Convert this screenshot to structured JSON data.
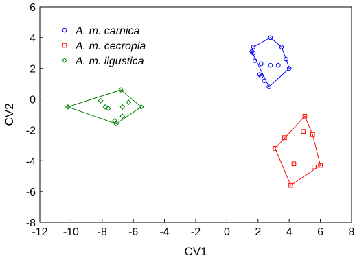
{
  "chart_data": {
    "type": "scatter",
    "title": "",
    "xlabel": "CV1",
    "ylabel": "CV2",
    "xlim": [
      -12,
      8
    ],
    "ylim": [
      -8,
      6
    ],
    "xticks": [
      -12,
      -10,
      -8,
      -6,
      -4,
      -2,
      0,
      2,
      4,
      6,
      8
    ],
    "yticks": [
      -8,
      -6,
      -4,
      -2,
      0,
      2,
      4,
      6
    ],
    "xtick_labels": [
      "-12",
      "-10",
      "-8",
      "-6",
      "-4",
      "-2",
      "0",
      "2",
      "4",
      "6",
      "8"
    ],
    "ytick_labels": [
      "-8",
      "-6",
      "-4",
      "-2",
      "0",
      "2",
      "4",
      "6"
    ],
    "grid": false,
    "legend_position": "top-left",
    "hulls": true,
    "series": [
      {
        "name": "A. m. carnica",
        "color": "#0000ff",
        "marker": "circle",
        "points": [
          [
            2.8,
            4.0
          ],
          [
            1.7,
            3.4
          ],
          [
            1.6,
            3.1
          ],
          [
            1.7,
            3.0
          ],
          [
            3.5,
            3.4
          ],
          [
            1.8,
            2.5
          ],
          [
            2.2,
            2.3
          ],
          [
            3.8,
            2.6
          ],
          [
            3.3,
            2.2
          ],
          [
            2.8,
            2.2
          ],
          [
            4.0,
            2.0
          ],
          [
            2.1,
            1.6
          ],
          [
            2.2,
            1.5
          ],
          [
            2.4,
            1.2
          ],
          [
            2.7,
            0.8
          ]
        ],
        "hull": [
          [
            1.7,
            3.4
          ],
          [
            2.8,
            4.0
          ],
          [
            3.5,
            3.4
          ],
          [
            3.8,
            2.6
          ],
          [
            4.0,
            2.0
          ],
          [
            2.7,
            0.8
          ],
          [
            1.6,
            3.1
          ]
        ]
      },
      {
        "name": "A. m. cecropia",
        "color": "#ff0000",
        "marker": "square",
        "points": [
          [
            5.0,
            -1.1
          ],
          [
            4.9,
            -2.1
          ],
          [
            5.5,
            -2.3
          ],
          [
            3.7,
            -2.5
          ],
          [
            3.1,
            -3.2
          ],
          [
            4.3,
            -4.2
          ],
          [
            6.0,
            -4.3
          ],
          [
            5.6,
            -4.4
          ],
          [
            4.1,
            -5.6
          ]
        ],
        "hull": [
          [
            5.0,
            -1.1
          ],
          [
            5.5,
            -2.3
          ],
          [
            6.0,
            -4.3
          ],
          [
            4.1,
            -5.6
          ],
          [
            3.1,
            -3.2
          ]
        ]
      },
      {
        "name": "A. m. ligustica",
        "color": "#008000",
        "marker": "diamond",
        "points": [
          [
            -6.8,
            0.6
          ],
          [
            -10.2,
            -0.5
          ],
          [
            -5.5,
            -0.5
          ],
          [
            -8.1,
            -0.1
          ],
          [
            -6.3,
            -0.2
          ],
          [
            -7.8,
            -0.5
          ],
          [
            -7.6,
            -0.6
          ],
          [
            -6.7,
            -0.5
          ],
          [
            -6.7,
            -1.1
          ],
          [
            -7.2,
            -1.4
          ],
          [
            -7.1,
            -1.6
          ]
        ],
        "hull": [
          [
            -6.8,
            0.6
          ],
          [
            -5.5,
            -0.5
          ],
          [
            -7.1,
            -1.6
          ],
          [
            -10.2,
            -0.5
          ]
        ]
      }
    ]
  }
}
